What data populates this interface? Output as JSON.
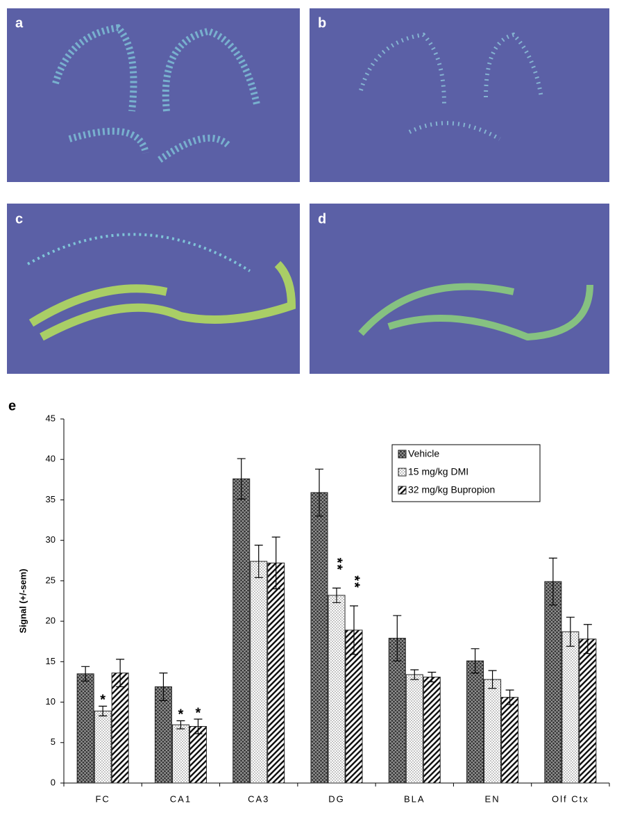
{
  "panels": [
    {
      "label": "a"
    },
    {
      "label": "b"
    },
    {
      "label": "c"
    },
    {
      "label": "d"
    }
  ],
  "chart_data": {
    "type": "bar",
    "label": "e",
    "y_label": "Signal (+/-sem)",
    "categories": [
      "FC",
      "CA1",
      "CA3",
      "DG",
      "BLA",
      "EN",
      "Olf Ctx"
    ],
    "series": [
      {
        "name": "Vehicle",
        "color": "#222222",
        "pattern": "crosshatch",
        "values": [
          13.5,
          11.9,
          37.6,
          35.9,
          17.9,
          15.1,
          24.9
        ],
        "errors": [
          0.9,
          1.7,
          2.5,
          2.9,
          2.8,
          1.5,
          2.9
        ],
        "markers": [
          null,
          null,
          null,
          null,
          null,
          null,
          null
        ]
      },
      {
        "name": "15 mg/kg DMI",
        "color": "#222222",
        "pattern": "dots",
        "values": [
          8.9,
          7.2,
          27.4,
          23.2,
          13.4,
          12.8,
          18.7
        ],
        "errors": [
          0.6,
          0.5,
          2.0,
          0.9,
          0.6,
          1.1,
          1.8
        ],
        "markers": [
          "*",
          "*",
          null,
          "**",
          null,
          null,
          null
        ]
      },
      {
        "name": "32 mg/kg Bupropion",
        "color": "#222222",
        "pattern": "hatch",
        "values": [
          13.6,
          7.0,
          27.2,
          18.9,
          13.1,
          10.6,
          17.8
        ],
        "errors": [
          1.7,
          0.9,
          3.2,
          3.0,
          0.6,
          0.9,
          1.8
        ],
        "markers": [
          null,
          "*",
          null,
          "**",
          null,
          null,
          null
        ]
      }
    ],
    "ylim": [
      0,
      45
    ],
    "yticks": [
      0,
      5,
      10,
      15,
      20,
      25,
      30,
      35,
      40,
      45
    ],
    "legend": "upper right",
    "grid": false
  }
}
